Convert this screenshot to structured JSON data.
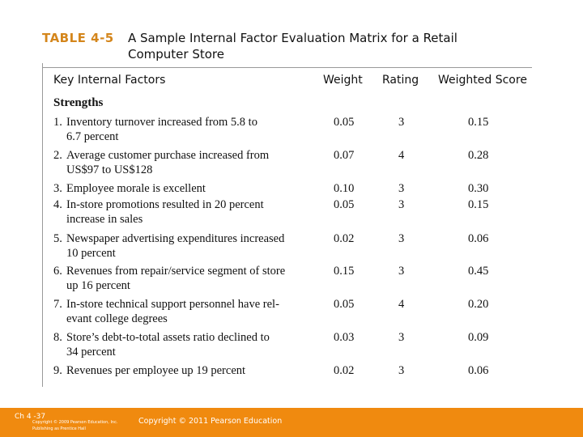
{
  "table": {
    "number": "TABLE 4-5",
    "caption_line1": "A Sample Internal Factor Evaluation Matrix for a Retail",
    "caption_line2": "Computer Store"
  },
  "columns": {
    "factor": "Key Internal Factors",
    "weight": "Weight",
    "rating": "Rating",
    "score": "Weighted Score"
  },
  "section": "Strengths",
  "rows": [
    {
      "num": "1.",
      "line1": "Inventory turnover increased from 5.8 to",
      "line2": "6.7 percent",
      "weight": "0.05",
      "rating": "3",
      "score": "0.15"
    },
    {
      "num": "2.",
      "line1": "Average customer purchase increased from",
      "line2": "US$97 to US$128",
      "weight": "0.07",
      "rating": "4",
      "score": "0.28"
    },
    {
      "num": "3.",
      "line1": "Employee morale is excellent",
      "line2": "",
      "weight": "0.10",
      "rating": "3",
      "score": "0.30"
    },
    {
      "num": "4.",
      "line1": "In-store promotions resulted in 20 percent",
      "line2": "increase in sales",
      "weight": "0.05",
      "rating": "3",
      "score": "0.15"
    },
    {
      "num": "5.",
      "line1": "Newspaper advertising expenditures increased",
      "line2": "10 percent",
      "weight": "0.02",
      "rating": "3",
      "score": "0.06"
    },
    {
      "num": "6.",
      "line1": "Revenues from repair/service segment of store",
      "line2": "up 16 percent",
      "weight": "0.15",
      "rating": "3",
      "score": "0.45"
    },
    {
      "num": "7.",
      "line1": "In-store technical support personnel have rel-",
      "line2": "evant college degrees",
      "weight": "0.05",
      "rating": "4",
      "score": "0.20"
    },
    {
      "num": "8.",
      "line1": "Store’s debt-to-total assets ratio declined to",
      "line2": "34 percent",
      "weight": "0.03",
      "rating": "3",
      "score": "0.09"
    },
    {
      "num": "9.",
      "line1": "Revenues per employee up 19 percent",
      "line2": "",
      "weight": "0.02",
      "rating": "3",
      "score": "0.06"
    }
  ],
  "footer": {
    "chapter": "Ch 4 -37",
    "tiny_line1": "Copyright © 2009 Pearson Education, Inc.",
    "tiny_line2": "Publishing as Prentice Hall",
    "copyright": "Copyright © 2011 Pearson Education"
  }
}
